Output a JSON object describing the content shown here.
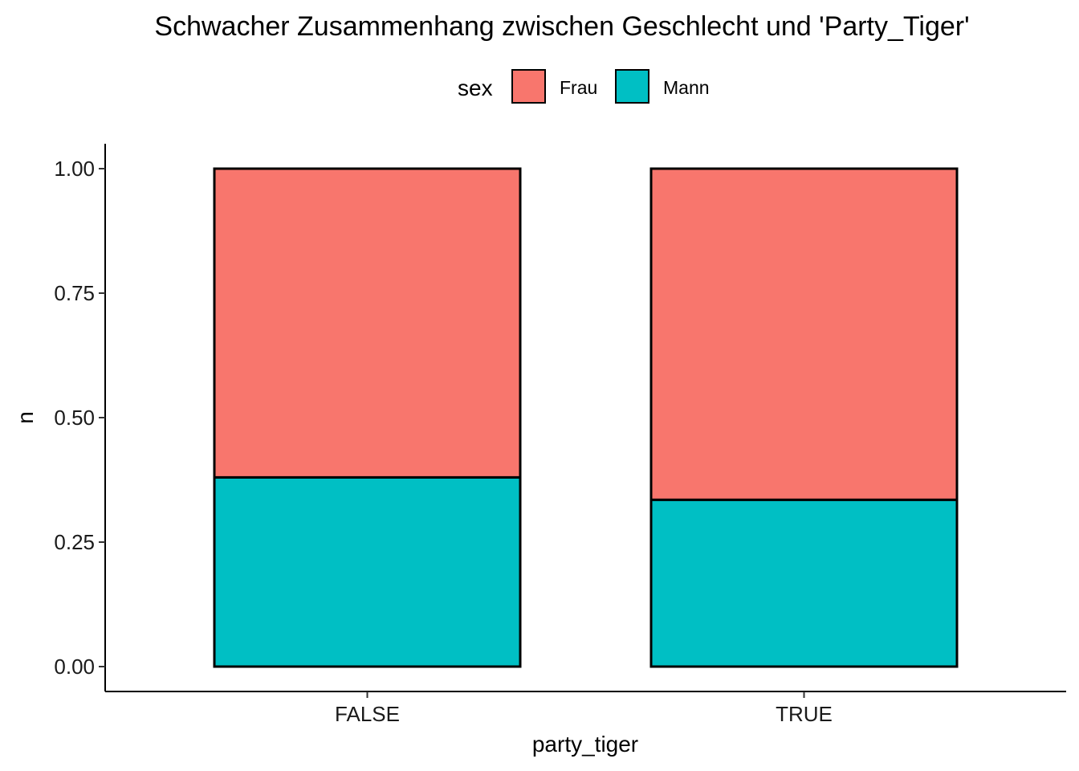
{
  "chart_data": {
    "type": "bar",
    "stacked": true,
    "title": "Schwacher Zusammenhang zwischen Geschlecht und 'Party_Tiger'",
    "xlabel": "party_tiger",
    "ylabel": "n",
    "categories": [
      "FALSE",
      "TRUE"
    ],
    "series": [
      {
        "name": "Mann",
        "values": [
          0.38,
          0.335
        ],
        "color": "#00BFC4"
      },
      {
        "name": "Frau",
        "values": [
          0.62,
          0.665
        ],
        "color": "#F8766D"
      }
    ],
    "ylim": [
      0,
      1
    ],
    "yticks": [
      "0.00",
      "0.25",
      "0.50",
      "0.75",
      "1.00"
    ],
    "legend": {
      "title": "sex",
      "placement": "top",
      "items": [
        {
          "label": "Frau",
          "color": "#F8766D"
        },
        {
          "label": "Mann",
          "color": "#00BFC4"
        }
      ]
    },
    "grid": false
  }
}
